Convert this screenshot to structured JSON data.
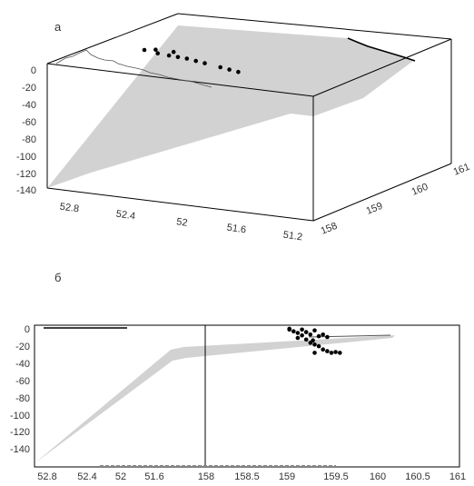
{
  "chart_data": [
    {
      "panel": "а",
      "type": "scatter",
      "title": "",
      "xlabel": "",
      "ylabel": "",
      "lat_ticks": [
        "52.8",
        "52.4",
        "52",
        "51.6",
        "51.2"
      ],
      "lon_ticks": [
        "158",
        "159",
        "160",
        "161"
      ],
      "z_ticks": [
        "0",
        "-20",
        "-40",
        "-60",
        "-80",
        "-100",
        "-120",
        "-140"
      ],
      "z_range": [
        -150,
        0
      ],
      "lat_range": [
        51.0,
        53.0
      ],
      "lon_range": [
        158,
        161
      ],
      "surface_color": "#d2d2d2",
      "points_color": "#000000",
      "points": [
        {
          "lon": 159.1,
          "lat": 52.55,
          "z": -4
        },
        {
          "lon": 159.2,
          "lat": 52.5,
          "z": -8
        },
        {
          "lon": 159.25,
          "lat": 52.45,
          "z": -10
        },
        {
          "lon": 159.3,
          "lat": 52.4,
          "z": -12
        },
        {
          "lon": 159.35,
          "lat": 52.35,
          "z": -15
        },
        {
          "lon": 159.4,
          "lat": 52.3,
          "z": -18
        },
        {
          "lon": 159.3,
          "lat": 52.5,
          "z": -6
        },
        {
          "lon": 159.2,
          "lat": 52.6,
          "z": -3
        },
        {
          "lon": 159.45,
          "lat": 52.2,
          "z": -22
        },
        {
          "lon": 159.5,
          "lat": 52.15,
          "z": -25
        },
        {
          "lon": 159.55,
          "lat": 52.1,
          "z": -28
        },
        {
          "lon": 159.1,
          "lat": 52.65,
          "z": -2
        }
      ]
    },
    {
      "panel": "б",
      "type": "scatter",
      "title": "",
      "xlabel": "",
      "ylabel": "",
      "lat_ticks": [
        "52.8",
        "52.4",
        "52",
        "51.6"
      ],
      "lon_ticks": [
        "158",
        "158.5",
        "159",
        "159.5",
        "160",
        "160.5",
        "161"
      ],
      "y_ticks": [
        "0",
        "-20",
        "-40",
        "-60",
        "-80",
        "-100",
        "-120",
        "-140"
      ],
      "lat_range": [
        53.0,
        51.3
      ],
      "lon_range": [
        158,
        161
      ],
      "ylim": [
        -150,
        0
      ],
      "surface_color": "#d2d2d2",
      "points_color": "#000000",
      "points": [
        {
          "lon": 159.0,
          "y": -2
        },
        {
          "lon": 159.05,
          "y": -4
        },
        {
          "lon": 159.1,
          "y": -6
        },
        {
          "lon": 159.15,
          "y": -2
        },
        {
          "lon": 159.2,
          "y": -5
        },
        {
          "lon": 159.25,
          "y": -8
        },
        {
          "lon": 159.3,
          "y": -3
        },
        {
          "lon": 159.35,
          "y": -10
        },
        {
          "lon": 159.1,
          "y": -12
        },
        {
          "lon": 159.2,
          "y": -14
        },
        {
          "lon": 159.25,
          "y": -18
        },
        {
          "lon": 159.3,
          "y": -20
        },
        {
          "lon": 159.35,
          "y": -22
        },
        {
          "lon": 159.4,
          "y": -26
        },
        {
          "lon": 159.45,
          "y": -28
        },
        {
          "lon": 159.5,
          "y": -30
        },
        {
          "lon": 159.55,
          "y": -29
        },
        {
          "lon": 159.6,
          "y": -30
        },
        {
          "lon": 159.3,
          "y": -30
        },
        {
          "lon": 159.4,
          "y": -8
        },
        {
          "lon": 159.45,
          "y": -11
        },
        {
          "lon": 159.0,
          "y": -1
        },
        {
          "lon": 159.15,
          "y": -9
        },
        {
          "lon": 159.28,
          "y": -15
        }
      ]
    }
  ]
}
